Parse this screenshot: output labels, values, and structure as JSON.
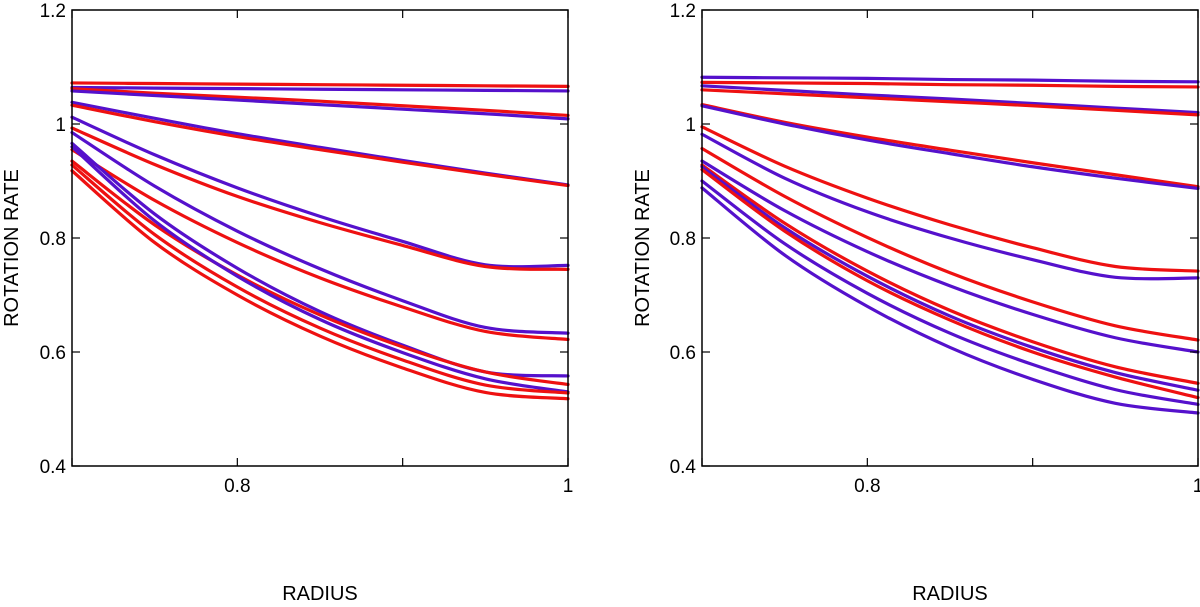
{
  "colors": {
    "red": "#ee1111",
    "purple": "#5511cc",
    "axis": "#000000"
  },
  "chart_data": [
    {
      "type": "line",
      "title": "",
      "xlabel": "RADIUS",
      "ylabel": "ROTATION RATE",
      "xlim": [
        0.7,
        1.0
      ],
      "ylim": [
        0.4,
        1.2
      ],
      "xticks": [
        0.7,
        0.8,
        0.9,
        1.0
      ],
      "xtick_labels": [
        "",
        "0.8",
        "",
        "1"
      ],
      "yticks": [
        0.4,
        0.6,
        0.8,
        1.0,
        1.2
      ],
      "ytick_labels": [
        "0.4",
        "0.6",
        "0.8",
        "1",
        "1.2"
      ],
      "grid": false,
      "series": [
        {
          "name": "red-1",
          "color": "red",
          "x": [
            0.7,
            0.75,
            0.8,
            0.85,
            0.9,
            0.95,
            1.0
          ],
          "y": [
            1.072,
            1.071,
            1.07,
            1.069,
            1.068,
            1.067,
            1.066
          ]
        },
        {
          "name": "purple-1",
          "color": "purple",
          "x": [
            0.7,
            0.75,
            0.8,
            0.85,
            0.9,
            0.95,
            1.0
          ],
          "y": [
            1.064,
            1.063,
            1.062,
            1.061,
            1.06,
            1.059,
            1.058
          ]
        },
        {
          "name": "red-2",
          "color": "red",
          "x": [
            0.7,
            0.75,
            0.8,
            0.85,
            0.9,
            0.95,
            1.0
          ],
          "y": [
            1.062,
            1.054,
            1.047,
            1.04,
            1.032,
            1.024,
            1.015
          ]
        },
        {
          "name": "purple-2",
          "color": "purple",
          "x": [
            0.7,
            0.75,
            0.8,
            0.85,
            0.9,
            0.95,
            1.0
          ],
          "y": [
            1.058,
            1.05,
            1.042,
            1.034,
            1.026,
            1.018,
            1.009
          ]
        },
        {
          "name": "purple-3",
          "color": "purple",
          "x": [
            0.7,
            0.75,
            0.8,
            0.85,
            0.9,
            0.95,
            1.0
          ],
          "y": [
            1.038,
            1.01,
            0.983,
            0.959,
            0.936,
            0.914,
            0.893
          ]
        },
        {
          "name": "red-3",
          "color": "red",
          "x": [
            0.7,
            0.75,
            0.8,
            0.85,
            0.9,
            0.95,
            1.0
          ],
          "y": [
            1.033,
            1.004,
            0.978,
            0.955,
            0.933,
            0.912,
            0.892
          ]
        },
        {
          "name": "purple-4",
          "color": "purple",
          "x": [
            0.7,
            0.75,
            0.8,
            0.85,
            0.9,
            0.95,
            1.0
          ],
          "y": [
            1.012,
            0.946,
            0.888,
            0.838,
            0.794,
            0.753,
            0.752
          ]
        },
        {
          "name": "red-4",
          "color": "red",
          "x": [
            0.7,
            0.75,
            0.8,
            0.85,
            0.9,
            0.95,
            1.0
          ],
          "y": [
            0.993,
            0.929,
            0.873,
            0.827,
            0.787,
            0.75,
            0.745
          ]
        },
        {
          "name": "purple-5",
          "color": "purple",
          "x": [
            0.7,
            0.75,
            0.8,
            0.85,
            0.9,
            0.95,
            1.0
          ],
          "y": [
            0.985,
            0.891,
            0.812,
            0.746,
            0.69,
            0.643,
            0.633
          ]
        },
        {
          "name": "red-5",
          "color": "red",
          "x": [
            0.7,
            0.75,
            0.8,
            0.85,
            0.9,
            0.95,
            1.0
          ],
          "y": [
            0.955,
            0.866,
            0.792,
            0.73,
            0.679,
            0.636,
            0.622
          ]
        },
        {
          "name": "purple-6",
          "color": "purple",
          "x": [
            0.7,
            0.75,
            0.8,
            0.85,
            0.9,
            0.95,
            1.0
          ],
          "y": [
            0.966,
            0.842,
            0.747,
            0.671,
            0.612,
            0.565,
            0.558
          ]
        },
        {
          "name": "red-6",
          "color": "red",
          "x": [
            0.7,
            0.75,
            0.8,
            0.85,
            0.9,
            0.95,
            1.0
          ],
          "y": [
            0.935,
            0.823,
            0.735,
            0.665,
            0.609,
            0.565,
            0.543
          ]
        },
        {
          "name": "purple-7",
          "color": "purple",
          "x": [
            0.7,
            0.75,
            0.8,
            0.85,
            0.9,
            0.95,
            1.0
          ],
          "y": [
            0.96,
            0.83,
            0.733,
            0.657,
            0.599,
            0.553,
            0.53
          ]
        },
        {
          "name": "red-7",
          "color": "red",
          "x": [
            0.7,
            0.75,
            0.8,
            0.85,
            0.9,
            0.95,
            1.0
          ],
          "y": [
            0.928,
            0.806,
            0.714,
            0.642,
            0.586,
            0.542,
            0.528
          ]
        },
        {
          "name": "red-8",
          "color": "red",
          "x": [
            0.7,
            0.75,
            0.8,
            0.85,
            0.9,
            0.95,
            1.0
          ],
          "y": [
            0.918,
            0.792,
            0.7,
            0.628,
            0.572,
            0.529,
            0.518
          ]
        }
      ]
    },
    {
      "type": "line",
      "title": "",
      "xlabel": "RADIUS",
      "ylabel": "ROTATION RATE",
      "xlim": [
        0.7,
        1.0
      ],
      "ylim": [
        0.4,
        1.2
      ],
      "xticks": [
        0.7,
        0.8,
        0.9,
        1.0
      ],
      "xtick_labels": [
        "",
        "0.8",
        "",
        "1"
      ],
      "yticks": [
        0.4,
        0.6,
        0.8,
        1.0,
        1.2
      ],
      "ytick_labels": [
        "0.4",
        "0.6",
        "0.8",
        "1",
        "1.2"
      ],
      "grid": false,
      "series": [
        {
          "name": "purple-1",
          "color": "purple",
          "x": [
            0.7,
            0.75,
            0.8,
            0.85,
            0.9,
            0.95,
            1.0
          ],
          "y": [
            1.082,
            1.081,
            1.08,
            1.078,
            1.077,
            1.075,
            1.074
          ]
        },
        {
          "name": "red-1",
          "color": "red",
          "x": [
            0.7,
            0.75,
            0.8,
            0.85,
            0.9,
            0.95,
            1.0
          ],
          "y": [
            1.073,
            1.072,
            1.071,
            1.069,
            1.068,
            1.066,
            1.065
          ]
        },
        {
          "name": "purple-2",
          "color": "purple",
          "x": [
            0.7,
            0.75,
            0.8,
            0.85,
            0.9,
            0.95,
            1.0
          ],
          "y": [
            1.067,
            1.059,
            1.051,
            1.044,
            1.036,
            1.028,
            1.02
          ]
        },
        {
          "name": "red-2",
          "color": "red",
          "x": [
            0.7,
            0.75,
            0.8,
            0.85,
            0.9,
            0.95,
            1.0
          ],
          "y": [
            1.06,
            1.053,
            1.046,
            1.039,
            1.032,
            1.024,
            1.016
          ]
        },
        {
          "name": "red-3",
          "color": "red",
          "x": [
            0.7,
            0.75,
            0.8,
            0.85,
            0.9,
            0.95,
            1.0
          ],
          "y": [
            1.034,
            1.003,
            0.977,
            0.954,
            0.932,
            0.911,
            0.89
          ]
        },
        {
          "name": "purple-3",
          "color": "purple",
          "x": [
            0.7,
            0.75,
            0.8,
            0.85,
            0.9,
            0.95,
            1.0
          ],
          "y": [
            1.032,
            1.0,
            0.972,
            0.948,
            0.925,
            0.905,
            0.887
          ]
        },
        {
          "name": "red-4",
          "color": "red",
          "x": [
            0.7,
            0.75,
            0.8,
            0.85,
            0.9,
            0.95,
            1.0
          ],
          "y": [
            0.995,
            0.926,
            0.87,
            0.823,
            0.783,
            0.75,
            0.742
          ]
        },
        {
          "name": "purple-4",
          "color": "purple",
          "x": [
            0.7,
            0.75,
            0.8,
            0.85,
            0.9,
            0.95,
            1.0
          ],
          "y": [
            0.982,
            0.905,
            0.846,
            0.8,
            0.762,
            0.731,
            0.73
          ]
        },
        {
          "name": "red-5",
          "color": "red",
          "x": [
            0.7,
            0.75,
            0.8,
            0.85,
            0.9,
            0.95,
            1.0
          ],
          "y": [
            0.957,
            0.873,
            0.801,
            0.739,
            0.688,
            0.646,
            0.621
          ]
        },
        {
          "name": "purple-5",
          "color": "purple",
          "x": [
            0.7,
            0.75,
            0.8,
            0.85,
            0.9,
            0.95,
            1.0
          ],
          "y": [
            0.935,
            0.848,
            0.776,
            0.716,
            0.666,
            0.625,
            0.6
          ]
        },
        {
          "name": "red-6",
          "color": "red",
          "x": [
            0.7,
            0.75,
            0.8,
            0.85,
            0.9,
            0.95,
            1.0
          ],
          "y": [
            0.928,
            0.826,
            0.742,
            0.673,
            0.618,
            0.574,
            0.545
          ]
        },
        {
          "name": "purple-6",
          "color": "purple",
          "x": [
            0.7,
            0.75,
            0.8,
            0.85,
            0.9,
            0.95,
            1.0
          ],
          "y": [
            0.925,
            0.818,
            0.733,
            0.663,
            0.608,
            0.564,
            0.533
          ]
        },
        {
          "name": "red-7",
          "color": "red",
          "x": [
            0.7,
            0.75,
            0.8,
            0.85,
            0.9,
            0.95,
            1.0
          ],
          "y": [
            0.92,
            0.812,
            0.725,
            0.656,
            0.6,
            0.556,
            0.52
          ]
        },
        {
          "name": "purple-7",
          "color": "purple",
          "x": [
            0.7,
            0.75,
            0.8,
            0.85,
            0.9,
            0.95,
            1.0
          ],
          "y": [
            0.9,
            0.79,
            0.703,
            0.633,
            0.578,
            0.534,
            0.508
          ]
        },
        {
          "name": "purple-8",
          "color": "purple",
          "x": [
            0.7,
            0.75,
            0.8,
            0.85,
            0.9,
            0.95,
            1.0
          ],
          "y": [
            0.888,
            0.77,
            0.68,
            0.608,
            0.552,
            0.51,
            0.493
          ]
        }
      ]
    }
  ]
}
